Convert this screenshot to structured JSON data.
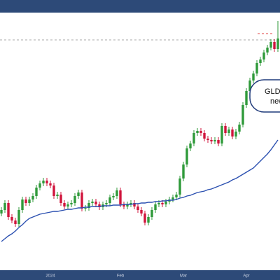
{
  "chart_data": {
    "type": "candlestick",
    "categories": [
      null,
      null,
      null,
      null,
      null,
      null,
      null,
      null,
      null,
      null,
      null,
      null,
      null,
      null,
      "2024",
      null,
      null,
      null,
      null,
      null,
      null,
      null,
      null,
      null,
      null,
      null,
      null,
      null,
      null,
      null,
      null,
      null,
      null,
      null,
      "Feb",
      null,
      null,
      null,
      null,
      null,
      null,
      null,
      null,
      null,
      null,
      null,
      null,
      null,
      null,
      null,
      null,
      null,
      "Mar",
      null,
      null,
      null,
      null,
      null,
      null,
      null,
      null,
      null,
      null,
      null,
      null,
      null,
      null,
      null,
      null,
      null,
      "Apr",
      null,
      null,
      null,
      null,
      null,
      null,
      null,
      null,
      null
    ],
    "open": [
      95,
      100,
      110,
      90,
      85,
      80,
      100,
      115,
      110,
      115,
      120,
      132,
      138,
      142,
      138,
      135,
      120,
      122,
      110,
      105,
      108,
      110,
      120,
      125,
      102,
      103,
      110,
      112,
      108,
      104,
      108,
      110,
      118,
      120,
      128,
      108,
      105,
      108,
      110,
      105,
      100,
      95,
      82,
      90,
      100,
      108,
      110,
      108,
      112,
      115,
      118,
      122,
      145,
      165,
      188,
      195,
      210,
      213,
      210,
      202,
      200,
      198,
      200,
      195,
      220,
      210,
      215,
      205,
      212,
      222,
      250,
      270,
      285,
      295,
      310,
      315,
      325,
      332,
      340,
      330
    ],
    "high": [
      104,
      114,
      114,
      94,
      89,
      104,
      119,
      119,
      119,
      124,
      136,
      142,
      146,
      146,
      142,
      139,
      126,
      126,
      114,
      112,
      114,
      124,
      129,
      129,
      107,
      114,
      116,
      116,
      112,
      112,
      114,
      122,
      124,
      132,
      132,
      112,
      112,
      114,
      114,
      109,
      104,
      99,
      94,
      104,
      112,
      114,
      114,
      116,
      119,
      122,
      126,
      149,
      169,
      192,
      199,
      214,
      217,
      217,
      214,
      206,
      204,
      204,
      204,
      224,
      224,
      219,
      219,
      216,
      226,
      254,
      274,
      289,
      299,
      314,
      319,
      329,
      336,
      344,
      344,
      370
    ],
    "low": [
      91,
      96,
      86,
      81,
      76,
      76,
      96,
      106,
      106,
      111,
      116,
      128,
      134,
      134,
      131,
      116,
      116,
      106,
      101,
      101,
      104,
      106,
      116,
      98,
      98,
      99,
      106,
      104,
      100,
      100,
      104,
      106,
      114,
      116,
      104,
      101,
      101,
      104,
      101,
      96,
      91,
      78,
      78,
      86,
      96,
      104,
      104,
      104,
      108,
      111,
      114,
      118,
      141,
      161,
      184,
      191,
      206,
      206,
      198,
      196,
      194,
      194,
      191,
      191,
      206,
      206,
      201,
      201,
      208,
      218,
      246,
      266,
      281,
      291,
      306,
      311,
      321,
      328,
      326,
      326
    ],
    "close": [
      100,
      110,
      90,
      85,
      80,
      100,
      115,
      110,
      115,
      120,
      132,
      138,
      142,
      138,
      135,
      120,
      122,
      110,
      105,
      108,
      110,
      120,
      125,
      102,
      103,
      110,
      112,
      108,
      104,
      108,
      110,
      118,
      120,
      128,
      108,
      105,
      108,
      110,
      105,
      100,
      95,
      82,
      90,
      100,
      108,
      110,
      108,
      112,
      115,
      118,
      122,
      145,
      165,
      188,
      195,
      210,
      213,
      210,
      202,
      200,
      198,
      200,
      195,
      220,
      210,
      215,
      205,
      212,
      222,
      250,
      270,
      285,
      295,
      310,
      315,
      325,
      332,
      340,
      330,
      345
    ],
    "up_color": "#2f9a3a",
    "down_color": "#d0143c",
    "moving_average": {
      "color": "#2a4fb0",
      "values": [
        55,
        59,
        63,
        66,
        70,
        75,
        79,
        84,
        88,
        90,
        92,
        94,
        95,
        96,
        97,
        98,
        98,
        99,
        100,
        101,
        101,
        102,
        103,
        103,
        104,
        104,
        105,
        105,
        105,
        106,
        106,
        106,
        107,
        107,
        107,
        108,
        108,
        108,
        109,
        109,
        110,
        110,
        111,
        111,
        112,
        112,
        113,
        113,
        114,
        114,
        115,
        117,
        118,
        120,
        121,
        123,
        125,
        126,
        127,
        129,
        130,
        132,
        134,
        136,
        138,
        140,
        143,
        145,
        148,
        151,
        154,
        157,
        160,
        165,
        170,
        175,
        180,
        186,
        193,
        200
      ]
    },
    "hlines": [
      {
        "value": 343,
        "color": "#aaaaaa"
      },
      {
        "value": 352,
        "color": "#e04040"
      }
    ],
    "ylim": [
      14,
      382
    ],
    "annotation": [
      "GLD",
      "new"
    ]
  }
}
